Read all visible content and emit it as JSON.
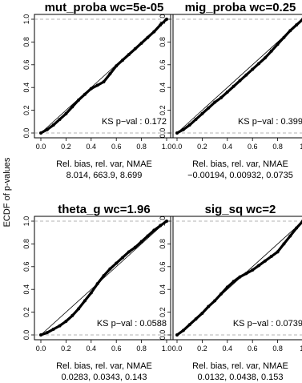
{
  "figure": {
    "ylabel": "ECDF of p-values",
    "stats_header": "Rel. bias,  rel. var,  NMAE"
  },
  "chart_data": [
    {
      "type": "line",
      "title": "mut_proba  wc=5e-05",
      "xlim": [
        0,
        1
      ],
      "ylim": [
        0,
        1
      ],
      "xticks": [
        "0.0",
        "0.2",
        "0.4",
        "0.6",
        "0.8",
        "1.0"
      ],
      "yticks": [
        "0.0",
        "0.2",
        "0.4",
        "0.6",
        "0.8",
        "1.0"
      ],
      "ks_label": "KS p−val : 0.172",
      "stats": "8.014,  663.9,  8.699",
      "reference_line": {
        "x": [
          0,
          1
        ],
        "y": [
          0,
          1
        ]
      },
      "ecdf": {
        "x": [
          0.0,
          0.05,
          0.1,
          0.15,
          0.2,
          0.25,
          0.3,
          0.35,
          0.4,
          0.45,
          0.5,
          0.55,
          0.6,
          0.65,
          0.7,
          0.75,
          0.8,
          0.85,
          0.9,
          0.95,
          1.0
        ],
        "y": [
          0.0,
          0.03,
          0.07,
          0.12,
          0.17,
          0.23,
          0.29,
          0.34,
          0.39,
          0.42,
          0.45,
          0.52,
          0.59,
          0.64,
          0.69,
          0.74,
          0.79,
          0.84,
          0.89,
          0.95,
          1.0
        ]
      }
    },
    {
      "type": "line",
      "title": "mig_proba  wc=0.25",
      "xlim": [
        0,
        1
      ],
      "ylim": [
        0,
        1
      ],
      "xticks": [
        "0.0",
        "0.2",
        "0.4",
        "0.6",
        "0.8",
        "1."
      ],
      "yticks": [
        "0.0",
        "0.2",
        "0.4",
        "0.6",
        "0.8",
        "1.0"
      ],
      "ks_label": "KS p−val : 0.399",
      "stats": "−0.00194,  0.00932,  0.0735",
      "reference_line": {
        "x": [
          0,
          1
        ],
        "y": [
          0,
          1
        ]
      },
      "ecdf": {
        "x": [
          0.0,
          0.05,
          0.1,
          0.15,
          0.2,
          0.25,
          0.3,
          0.35,
          0.4,
          0.45,
          0.5,
          0.55,
          0.6,
          0.65,
          0.7,
          0.75,
          0.8,
          0.85,
          0.9,
          0.95,
          1.0
        ],
        "y": [
          0.0,
          0.03,
          0.07,
          0.12,
          0.17,
          0.22,
          0.27,
          0.31,
          0.36,
          0.41,
          0.46,
          0.51,
          0.56,
          0.61,
          0.66,
          0.72,
          0.78,
          0.84,
          0.9,
          0.95,
          1.0
        ]
      }
    },
    {
      "type": "line",
      "title": "theta_g  wc=1.96",
      "xlim": [
        0,
        1
      ],
      "ylim": [
        0,
        1
      ],
      "xticks": [
        "0.0",
        "0.2",
        "0.4",
        "0.6",
        "0.8",
        "1.0"
      ],
      "yticks": [
        "0.0",
        "0.2",
        "0.4",
        "0.6",
        "0.8",
        "1.0"
      ],
      "ks_label": "KS p−val : 0.0588",
      "stats": "0.0283,  0.0343,  0.143",
      "reference_line": {
        "x": [
          0,
          1
        ],
        "y": [
          0,
          1
        ]
      },
      "ecdf": {
        "x": [
          0.0,
          0.05,
          0.1,
          0.15,
          0.2,
          0.25,
          0.3,
          0.35,
          0.4,
          0.45,
          0.5,
          0.55,
          0.6,
          0.65,
          0.7,
          0.75,
          0.8,
          0.85,
          0.9,
          0.95,
          1.0
        ],
        "y": [
          0.0,
          0.02,
          0.05,
          0.08,
          0.12,
          0.17,
          0.23,
          0.3,
          0.37,
          0.45,
          0.52,
          0.58,
          0.63,
          0.68,
          0.73,
          0.77,
          0.82,
          0.87,
          0.92,
          0.96,
          1.0
        ]
      }
    },
    {
      "type": "line",
      "title": "sig_sq  wc=2",
      "xlim": [
        0,
        1
      ],
      "ylim": [
        0,
        1
      ],
      "xticks": [
        "0.0",
        "0.2",
        "0.4",
        "0.6",
        "0.8",
        "1."
      ],
      "yticks": [
        "0.0",
        "0.2",
        "0.4",
        "0.6",
        "0.8",
        "1.0"
      ],
      "ks_label": "KS p−val : 0.0739",
      "stats": "0.0132,  0.0438,  0.153",
      "reference_line": {
        "x": [
          0,
          1
        ],
        "y": [
          0,
          1
        ]
      },
      "ecdf": {
        "x": [
          0.0,
          0.05,
          0.1,
          0.15,
          0.2,
          0.25,
          0.3,
          0.35,
          0.4,
          0.45,
          0.5,
          0.55,
          0.6,
          0.65,
          0.7,
          0.75,
          0.8,
          0.85,
          0.9,
          0.95,
          1.0
        ],
        "y": [
          0.0,
          0.04,
          0.09,
          0.14,
          0.19,
          0.25,
          0.3,
          0.36,
          0.42,
          0.47,
          0.51,
          0.54,
          0.57,
          0.61,
          0.65,
          0.69,
          0.73,
          0.8,
          0.87,
          0.94,
          1.0
        ]
      }
    }
  ]
}
